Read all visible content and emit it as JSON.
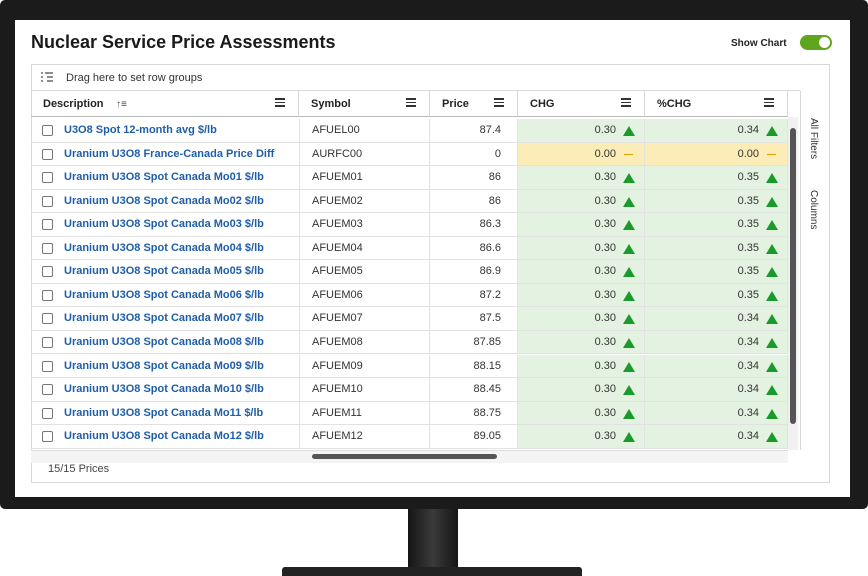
{
  "header": {
    "title": "Nuclear Service Price Assessments",
    "show_chart": "Show Chart"
  },
  "toolbar": {
    "row_groups": "Drag here to set row groups"
  },
  "table": {
    "columns": [
      "Description",
      "Symbol",
      "Price",
      "CHG",
      "%CHG"
    ],
    "rows": [
      [
        "U3O8 Spot 12-month avg $/lb",
        "AFUEL00",
        "87.4",
        "0.30",
        "0.34"
      ],
      [
        "Uranium U3O8 France-Canada Price Diff",
        "AURFC00",
        "0",
        "0.00",
        "0.00"
      ],
      [
        "Uranium U3O8 Spot Canada Mo01 $/lb",
        "AFUEM01",
        "86",
        "0.30",
        "0.35"
      ],
      [
        "Uranium U3O8 Spot Canada Mo02 $/lb",
        "AFUEM02",
        "86",
        "0.30",
        "0.35"
      ],
      [
        "Uranium U3O8 Spot Canada Mo03 $/lb",
        "AFUEM03",
        "86.3",
        "0.30",
        "0.35"
      ],
      [
        "Uranium U3O8 Spot Canada Mo04 $/lb",
        "AFUEM04",
        "86.6",
        "0.30",
        "0.35"
      ],
      [
        "Uranium U3O8 Spot Canada Mo05 $/lb",
        "AFUEM05",
        "86.9",
        "0.30",
        "0.35"
      ],
      [
        "Uranium U3O8 Spot Canada Mo06 $/lb",
        "AFUEM06",
        "87.2",
        "0.30",
        "0.35"
      ],
      [
        "Uranium U3O8 Spot Canada Mo07 $/lb",
        "AFUEM07",
        "87.5",
        "0.30",
        "0.34"
      ],
      [
        "Uranium U3O8 Spot Canada Mo08 $/lb",
        "AFUEM08",
        "87.85",
        "0.30",
        "0.34"
      ],
      [
        "Uranium U3O8 Spot Canada Mo09 $/lb",
        "AFUEM09",
        "88.15",
        "0.30",
        "0.34"
      ],
      [
        "Uranium U3O8 Spot Canada Mo10 $/lb",
        "AFUEM10",
        "88.45",
        "0.30",
        "0.34"
      ],
      [
        "Uranium U3O8 Spot Canada Mo11 $/lb",
        "AFUEM11",
        "88.75",
        "0.30",
        "0.34"
      ],
      [
        "Uranium U3O8 Spot Canada Mo12 $/lb",
        "AFUEM12",
        "89.05",
        "0.30",
        "0.34"
      ]
    ]
  },
  "side_panel": [
    "All Filters",
    "Columns"
  ],
  "footer": {
    "count": "15/15 Prices"
  }
}
